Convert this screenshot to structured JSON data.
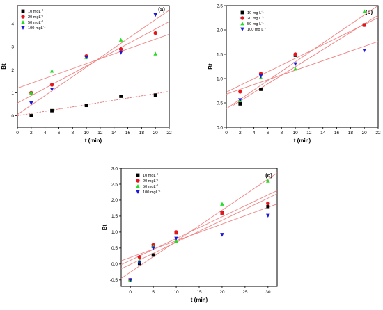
{
  "chart_data": [
    {
      "type": "scatter",
      "panel_label": "(a)",
      "xlabel": "t (min)",
      "ylabel": "Bt",
      "xlim": [
        0,
        22
      ],
      "ylim": [
        -0.5,
        4.8
      ],
      "xticks": [
        "0",
        "2",
        "4",
        "6",
        "8",
        "10",
        "12",
        "14",
        "16",
        "18",
        "20",
        "22"
      ],
      "yticks": [
        "0",
        "1",
        "2",
        "3",
        "4"
      ],
      "series": [
        {
          "name": "10 mgL",
          "unit_sup": "-1",
          "color": "#000000",
          "marker": "square",
          "x": [
            2,
            5,
            10,
            15,
            20
          ],
          "y": [
            0.0,
            0.22,
            0.45,
            0.85,
            0.9
          ],
          "fit": [
            [
              0,
              0.0
            ],
            [
              22,
              1.06
            ]
          ],
          "fit_dashed": true
        },
        {
          "name": "20 mgL",
          "unit_sup": "-1",
          "color": "#e8141c",
          "marker": "circle",
          "x": [
            2,
            5,
            10,
            15,
            20
          ],
          "y": [
            1.0,
            1.35,
            2.6,
            2.9,
            3.6
          ],
          "fit": [
            [
              0,
              0.55
            ],
            [
              22,
              4.1
            ]
          ]
        },
        {
          "name": "50 mgL",
          "unit_sup": "-1",
          "color": "#22dd22",
          "marker": "triangle-up",
          "x": [
            2,
            5,
            10,
            15,
            20
          ],
          "y": [
            1.0,
            1.95,
            2.55,
            3.3,
            2.7
          ],
          "fit": [
            [
              0,
              1.2
            ],
            [
              22,
              3.55
            ]
          ]
        },
        {
          "name": "100 mgL",
          "unit_sup": "-1",
          "color": "#1a1adb",
          "marker": "triangle-down",
          "x": [
            2,
            5,
            10,
            15,
            20
          ],
          "y": [
            0.55,
            1.15,
            2.55,
            2.75,
            4.4
          ],
          "fit": [
            [
              0,
              0.05
            ],
            [
              22,
              4.6
            ]
          ]
        }
      ]
    },
    {
      "type": "scatter",
      "panel_label": "(b)",
      "xlabel": "t (min)",
      "ylabel": "Bt",
      "xlim": [
        0,
        22
      ],
      "ylim": [
        0,
        2.5
      ],
      "xticks": [
        "0",
        "2",
        "4",
        "6",
        "8",
        "10",
        "12",
        "14",
        "16",
        "18",
        "20",
        "22"
      ],
      "yticks": [
        "0.0",
        "0.5",
        "1.0",
        "1.5",
        "2.0",
        "2.5"
      ],
      "series": [
        {
          "name": "10 mg L",
          "unit_sup": "-1",
          "color": "#000000",
          "marker": "square",
          "x": [
            2,
            5,
            10,
            20
          ],
          "y": [
            0.48,
            0.78,
            1.48,
            2.1
          ],
          "fit": [
            [
              1,
              0.45
            ],
            [
              22,
              2.3
            ]
          ]
        },
        {
          "name": "20 mg L",
          "unit_sup": "-1",
          "color": "#e8141c",
          "marker": "circle",
          "x": [
            2,
            5,
            10,
            20
          ],
          "y": [
            0.73,
            1.1,
            1.5,
            2.1
          ],
          "fit": [
            [
              0,
              0.72
            ],
            [
              22,
              2.25
            ]
          ]
        },
        {
          "name": "50 mg L",
          "unit_sup": "-1",
          "color": "#22dd22",
          "marker": "triangle-up",
          "x": [
            2,
            5,
            10,
            20
          ],
          "y": [
            0.55,
            1.02,
            1.2,
            2.38
          ],
          "fit": [
            [
              0,
              0.38
            ],
            [
              22,
              2.5
            ]
          ]
        },
        {
          "name": "100 mg L",
          "unit_sup": "-1",
          "color": "#1a1adb",
          "marker": "triangle-down",
          "x": [
            2,
            5,
            10,
            20
          ],
          "y": [
            0.56,
            1.05,
            1.3,
            1.58
          ],
          "fit": [
            [
              0,
              0.68
            ],
            [
              22,
              1.76
            ]
          ]
        }
      ]
    },
    {
      "type": "scatter",
      "panel_label": "(c)",
      "xlabel": "t (min)",
      "ylabel": "Bt",
      "xlim": [
        -2,
        32
      ],
      "ylim": [
        -0.7,
        3.0
      ],
      "xticks": [
        "0",
        "5",
        "10",
        "15",
        "20",
        "25",
        "30"
      ],
      "xtick_values": [
        0,
        5,
        10,
        15,
        20,
        25,
        30
      ],
      "yticks": [
        "-0.5",
        "0.0",
        "0.5",
        "1.0",
        "1.5",
        "2.0",
        "2.5",
        "3.0"
      ],
      "ytick_values": [
        -0.5,
        0.0,
        0.5,
        1.0,
        1.5,
        2.0,
        2.5,
        3.0
      ],
      "series": [
        {
          "name": "10 mgL",
          "unit_sup": "-1",
          "color": "#000000",
          "marker": "square",
          "x": [
            0,
            2,
            5,
            10,
            20,
            30
          ],
          "y": [
            -0.5,
            0.02,
            0.28,
            0.98,
            1.6,
            1.8
          ],
          "fit": [
            [
              -2,
              -0.15
            ],
            [
              32,
              2.2
            ]
          ]
        },
        {
          "name": "20 mgL",
          "unit_sup": "-1",
          "color": "#e8141c",
          "marker": "circle",
          "x": [
            0,
            2,
            5,
            10,
            20,
            30
          ],
          "y": [
            -0.5,
            0.22,
            0.6,
            1.0,
            1.6,
            1.9
          ],
          "fit": [
            [
              -2,
              -0.02
            ],
            [
              32,
              2.3
            ]
          ]
        },
        {
          "name": "50 mgL",
          "unit_sup": "-1",
          "color": "#22dd22",
          "marker": "triangle-up",
          "x": [
            0,
            2,
            5,
            10,
            20,
            30
          ],
          "y": [
            -0.5,
            0.1,
            0.55,
            0.72,
            1.88,
            2.6
          ],
          "fit": [
            [
              -2,
              -0.45
            ],
            [
              32,
              2.85
            ]
          ]
        },
        {
          "name": "100 mgL",
          "unit_sup": "-1",
          "color": "#1a1adb",
          "marker": "triangle-down",
          "x": [
            0,
            2,
            5,
            10,
            20,
            30
          ],
          "y": [
            -0.5,
            0.05,
            0.5,
            0.8,
            0.92,
            1.52
          ],
          "fit": [
            [
              -2,
              0.1
            ],
            [
              32,
              1.88
            ]
          ]
        }
      ]
    }
  ]
}
